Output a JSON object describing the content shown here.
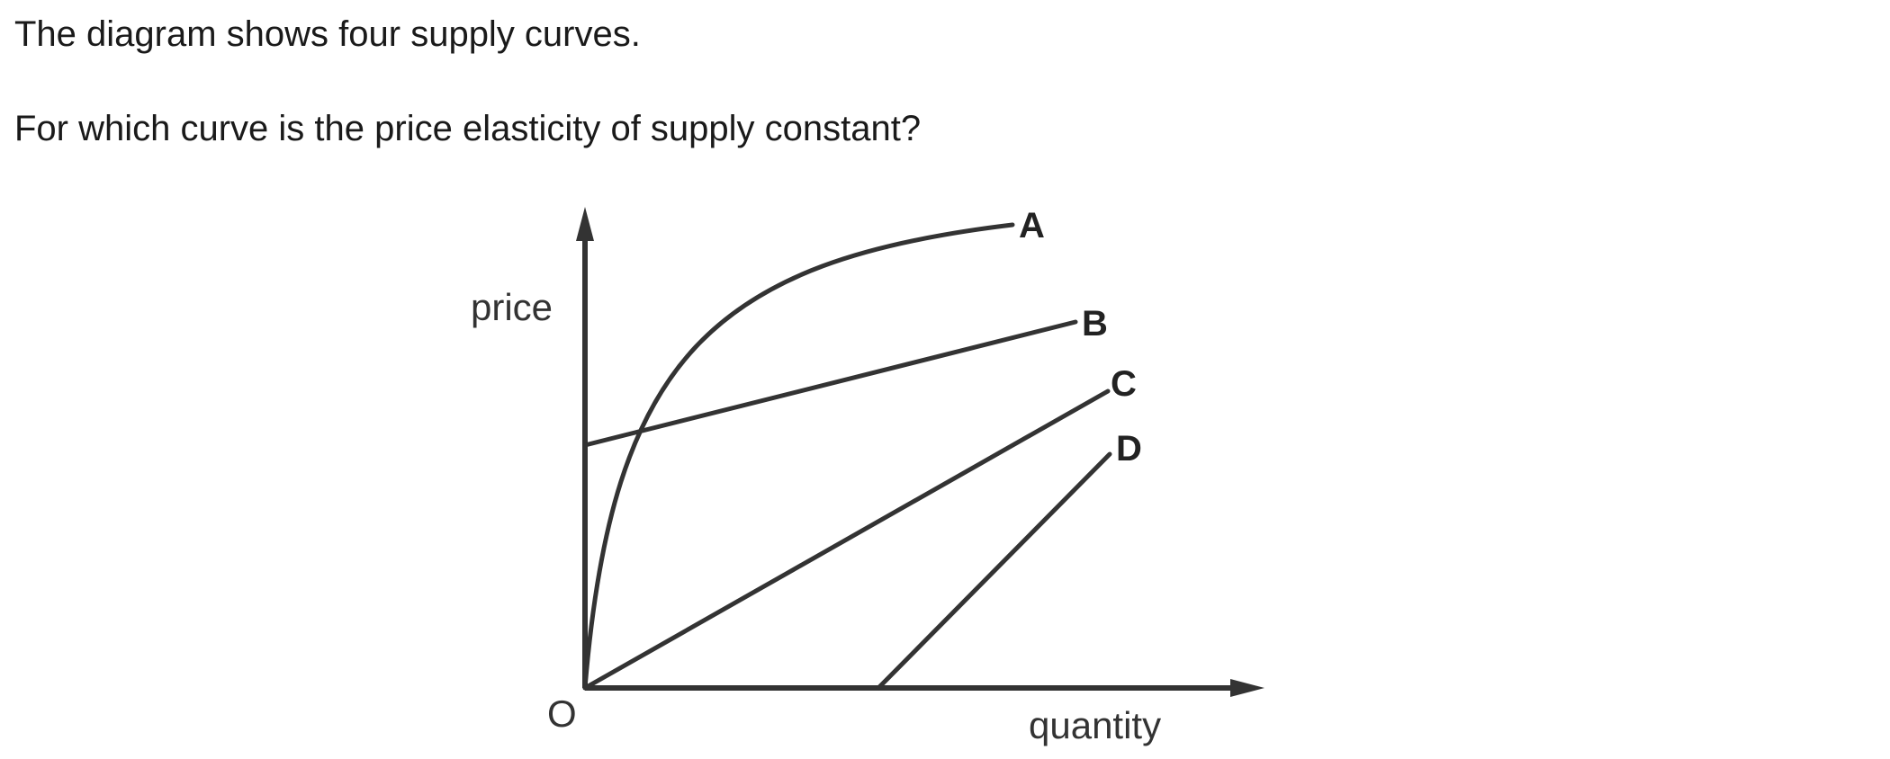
{
  "question": {
    "line1": "The diagram shows four supply curves.",
    "line2": "For which curve is the price elasticity of supply constant?"
  },
  "diagram": {
    "y_axis_label": "price",
    "x_axis_label": "quantity",
    "origin_label": "O",
    "curves": [
      {
        "label": "A",
        "shape": "concave curve rising from the origin"
      },
      {
        "label": "B",
        "shape": "straight line with a positive price intercept"
      },
      {
        "label": "C",
        "shape": "straight line through the origin"
      },
      {
        "label": "D",
        "shape": "straight line with a positive quantity intercept"
      }
    ],
    "colors": {
      "lines": "#333333",
      "text": "#1a1a1a"
    }
  }
}
